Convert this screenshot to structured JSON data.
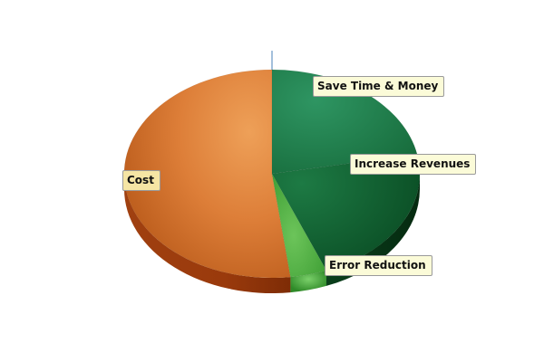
{
  "chart_data": {
    "type": "pie",
    "style": "3d",
    "title": "",
    "legend": "none",
    "categories": [
      "Cost",
      "Save Time & Money",
      "Increase Revenues",
      "Error Reduction"
    ],
    "values": [
      52,
      22,
      22,
      4
    ],
    "colors": {
      "Cost": "#dd7a32",
      "Save Time & Money": "#1e7a45",
      "Increase Revenues": "#115c2c",
      "Error Reduction": "#44aa38"
    },
    "labels": {
      "cost": "Cost",
      "save": "Save Time & Money",
      "revenue": "Increase Revenues",
      "error": "Error Reduction"
    }
  }
}
